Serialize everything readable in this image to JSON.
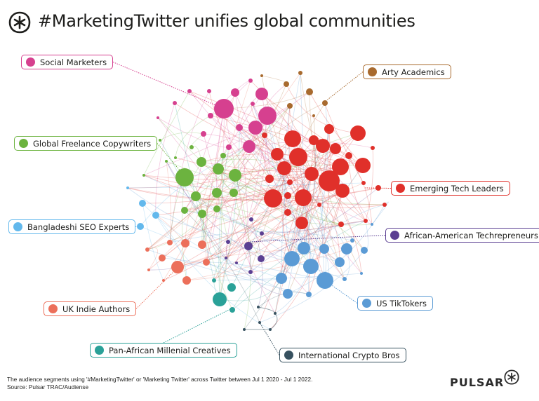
{
  "header": {
    "title": "#MarketingTwitter unifies global communities",
    "logo_icon": "pulsar-asterisk-icon"
  },
  "segments": [
    {
      "id": "social-marketers",
      "label": "Social Marketers",
      "color": "#d6408f"
    },
    {
      "id": "arty-academics",
      "label": "Arty Academics",
      "color": "#a86a2e"
    },
    {
      "id": "global-freelance-copywriters",
      "label": "Global Freelance Copywriters",
      "color": "#6cb33f"
    },
    {
      "id": "emerging-tech-leaders",
      "label": "Emerging Tech Leaders",
      "color": "#e0302a"
    },
    {
      "id": "bangladeshi-seo-experts",
      "label": "Bangladeshi SEO Experts",
      "color": "#62b8ec"
    },
    {
      "id": "african-american-techrepreneurs",
      "label": "African-American Techrepreneurs",
      "color": "#5b3f92"
    },
    {
      "id": "uk-indie-authors",
      "label": "UK Indie Authors",
      "color": "#ec6f5a"
    },
    {
      "id": "us-tiktokers",
      "label": "US TikTokers",
      "color": "#5b9bd5"
    },
    {
      "id": "pan-african-millenial-creatives",
      "label": "Pan-African Millenial Creatives",
      "color": "#2aa198"
    },
    {
      "id": "international-crypto-bros",
      "label": "International Crypto Bros",
      "color": "#37515f"
    }
  ],
  "footer": {
    "note": "The audience segments using '#MarketingTwitter' or 'Marketing Twitter' across Twitter between Jul 1 2020 - Jul 1 2022.",
    "source": "Source: Pulsar TRAC/Audiense",
    "brand": "PULSAR"
  }
}
